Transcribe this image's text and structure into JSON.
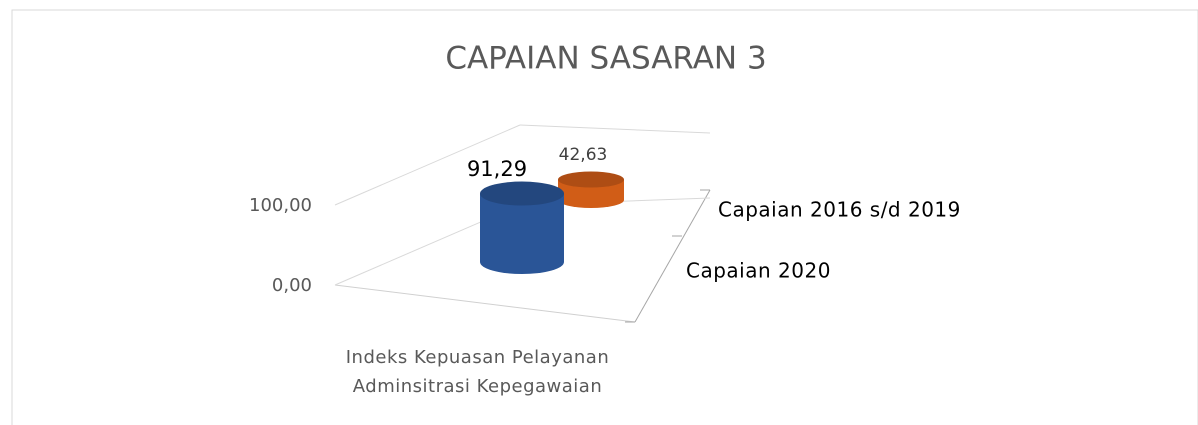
{
  "chart_data": {
    "type": "bar3d",
    "title": "CAPAIAN SASARAN 3",
    "categories": [
      "Indeks Kepuasan Pelayanan Adminsitrasi Kepegawaian"
    ],
    "series": [
      {
        "name": "Capaian 2020",
        "color": "#2f5ea8",
        "values": [
          91.29
        ],
        "value_labels": [
          "91,29"
        ]
      },
      {
        "name": "Capaian 2016 s/d 2019",
        "color": "#e8671a",
        "values": [
          42.63
        ],
        "value_labels": [
          "42,63"
        ]
      }
    ],
    "ylim": [
      0,
      100
    ],
    "yticks": [
      {
        "value": 0,
        "label": "0,00"
      },
      {
        "value": 100,
        "label": "100,00"
      }
    ],
    "grid": true
  }
}
